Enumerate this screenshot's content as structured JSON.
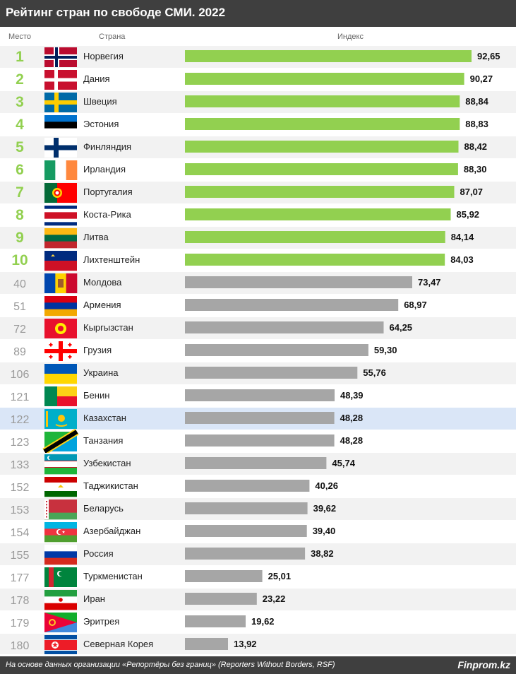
{
  "header": {
    "title": "Рейтинг стран по свободе СМИ. 2022"
  },
  "columns": {
    "rank": "Место",
    "country": "Страна",
    "index": "Индекс"
  },
  "footer": {
    "note": "На основе данных организации «Репортёры без границ» (Reporters Without Borders, RSF)",
    "brand": "Finprom.kz"
  },
  "colors": {
    "top": "#92d050",
    "rest": "#a6a6a6",
    "highlight_row": "#dae6f7",
    "stripe": "#f2f2f2",
    "header_bg": "#3f3f3f"
  },
  "chart_data": {
    "type": "bar",
    "orientation": "horizontal",
    "highlight": "Казахстан",
    "rows": [
      {
        "rank": "1",
        "country": "Норвегия",
        "value": 92.65,
        "label": "92,65",
        "flag": "norway-flag"
      },
      {
        "rank": "2",
        "country": "Дания",
        "value": 90.27,
        "label": "90,27",
        "flag": "denmark-flag"
      },
      {
        "rank": "3",
        "country": "Швеция",
        "value": 88.84,
        "label": "88,84",
        "flag": "sweden-flag"
      },
      {
        "rank": "4",
        "country": "Эстония",
        "value": 88.83,
        "label": "88,83",
        "flag": "estonia-flag"
      },
      {
        "rank": "5",
        "country": "Финляндия",
        "value": 88.42,
        "label": "88,42",
        "flag": "finland-flag"
      },
      {
        "rank": "6",
        "country": "Ирландия",
        "value": 88.3,
        "label": "88,30",
        "flag": "ireland-flag"
      },
      {
        "rank": "7",
        "country": "Португалия",
        "value": 87.07,
        "label": "87,07",
        "flag": "portugal-flag"
      },
      {
        "rank": "8",
        "country": "Коста-Рика",
        "value": 85.92,
        "label": "85,92",
        "flag": "costa-rica-flag"
      },
      {
        "rank": "9",
        "country": "Литва",
        "value": 84.14,
        "label": "84,14",
        "flag": "lithuania-flag"
      },
      {
        "rank": "10",
        "country": "Лихтенштейн",
        "value": 84.03,
        "label": "84,03",
        "flag": "liechtenstein-flag"
      },
      {
        "rank": "40",
        "country": "Молдова",
        "value": 73.47,
        "label": "73,47",
        "flag": "moldova-flag"
      },
      {
        "rank": "51",
        "country": "Армения",
        "value": 68.97,
        "label": "68,97",
        "flag": "armenia-flag"
      },
      {
        "rank": "72",
        "country": "Кыргызстан",
        "value": 64.25,
        "label": "64,25",
        "flag": "kyrgyzstan-flag"
      },
      {
        "rank": "89",
        "country": "Грузия",
        "value": 59.3,
        "label": "59,30",
        "flag": "georgia-flag"
      },
      {
        "rank": "106",
        "country": "Украина",
        "value": 55.76,
        "label": "55,76",
        "flag": "ukraine-flag"
      },
      {
        "rank": "121",
        "country": "Бенин",
        "value": 48.39,
        "label": "48,39",
        "flag": "benin-flag"
      },
      {
        "rank": "122",
        "country": "Казахстан",
        "value": 48.28,
        "label": "48,28",
        "flag": "kazakhstan-flag"
      },
      {
        "rank": "123",
        "country": "Танзания",
        "value": 48.28,
        "label": "48,28",
        "flag": "tanzania-flag"
      },
      {
        "rank": "133",
        "country": "Узбекистан",
        "value": 45.74,
        "label": "45,74",
        "flag": "uzbekistan-flag"
      },
      {
        "rank": "152",
        "country": "Таджикистан",
        "value": 40.26,
        "label": "40,26",
        "flag": "tajikistan-flag"
      },
      {
        "rank": "153",
        "country": "Беларусь",
        "value": 39.62,
        "label": "39,62",
        "flag": "belarus-flag"
      },
      {
        "rank": "154",
        "country": "Азербайджан",
        "value": 39.4,
        "label": "39,40",
        "flag": "azerbaijan-flag"
      },
      {
        "rank": "155",
        "country": "Россия",
        "value": 38.82,
        "label": "38,82",
        "flag": "russia-flag"
      },
      {
        "rank": "177",
        "country": "Туркменистан",
        "value": 25.01,
        "label": "25,01",
        "flag": "turkmenistan-flag"
      },
      {
        "rank": "178",
        "country": "Иран",
        "value": 23.22,
        "label": "23,22",
        "flag": "iran-flag"
      },
      {
        "rank": "179",
        "country": "Эритрея",
        "value": 19.62,
        "label": "19,62",
        "flag": "eritrea-flag"
      },
      {
        "rank": "180",
        "country": "Северная Корея",
        "value": 13.92,
        "label": "13,92",
        "flag": "north-korea-flag"
      }
    ]
  }
}
